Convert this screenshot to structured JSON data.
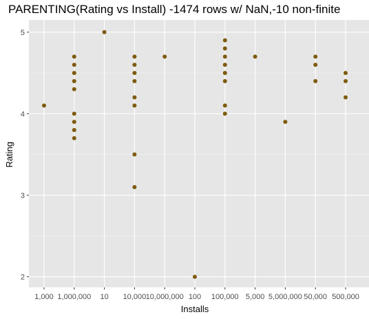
{
  "chart_data": {
    "type": "scatter",
    "title": "PARENTING(Rating vs Install) -1474 rows w/ NaN,-10 non-finite",
    "xlabel": "Installs",
    "ylabel": "Rating",
    "x_categories": [
      "1,000",
      "1,000,000",
      "10",
      "10,000",
      "10,000,000",
      "100",
      "100,000",
      "5,000",
      "5,000,000",
      "50,000",
      "500,000"
    ],
    "ylim": [
      1.87,
      5.15
    ],
    "y_ticks": [
      2,
      3,
      4,
      5
    ],
    "grid": true,
    "point_color": "#7f5a0f",
    "panel_color": "#e6e6e6",
    "points": [
      {
        "x": "1,000",
        "y": 4.1
      },
      {
        "x": "1,000,000",
        "y": 4.7
      },
      {
        "x": "1,000,000",
        "y": 4.6
      },
      {
        "x": "1,000,000",
        "y": 4.5
      },
      {
        "x": "1,000,000",
        "y": 4.4
      },
      {
        "x": "1,000,000",
        "y": 4.3
      },
      {
        "x": "1,000,000",
        "y": 4.0
      },
      {
        "x": "1,000,000",
        "y": 3.9
      },
      {
        "x": "1,000,000",
        "y": 3.8
      },
      {
        "x": "1,000,000",
        "y": 3.7
      },
      {
        "x": "10",
        "y": 5.0
      },
      {
        "x": "10,000",
        "y": 4.7
      },
      {
        "x": "10,000",
        "y": 4.6
      },
      {
        "x": "10,000",
        "y": 4.5
      },
      {
        "x": "10,000",
        "y": 4.4
      },
      {
        "x": "10,000",
        "y": 4.2
      },
      {
        "x": "10,000",
        "y": 4.1
      },
      {
        "x": "10,000",
        "y": 3.5
      },
      {
        "x": "10,000",
        "y": 3.1
      },
      {
        "x": "10,000,000",
        "y": 4.7
      },
      {
        "x": "100",
        "y": 2.0
      },
      {
        "x": "100,000",
        "y": 4.9
      },
      {
        "x": "100,000",
        "y": 4.8
      },
      {
        "x": "100,000",
        "y": 4.7
      },
      {
        "x": "100,000",
        "y": 4.6
      },
      {
        "x": "100,000",
        "y": 4.5
      },
      {
        "x": "100,000",
        "y": 4.4
      },
      {
        "x": "100,000",
        "y": 4.1
      },
      {
        "x": "100,000",
        "y": 4.0
      },
      {
        "x": "5,000",
        "y": 4.7
      },
      {
        "x": "5,000,000",
        "y": 3.9
      },
      {
        "x": "50,000",
        "y": 4.7
      },
      {
        "x": "50,000",
        "y": 4.6
      },
      {
        "x": "50,000",
        "y": 4.4
      },
      {
        "x": "500,000",
        "y": 4.5
      },
      {
        "x": "500,000",
        "y": 4.4
      },
      {
        "x": "500,000",
        "y": 4.2
      }
    ]
  }
}
